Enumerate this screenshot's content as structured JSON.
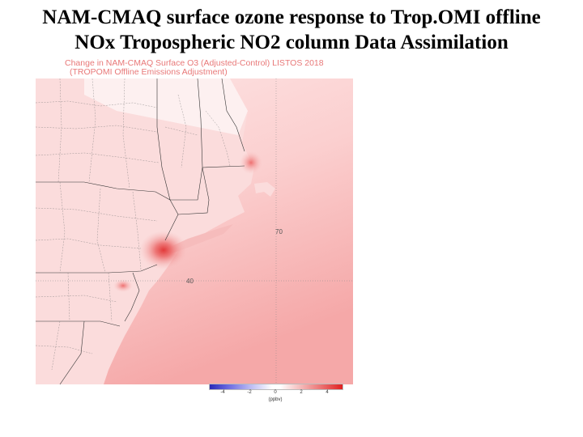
{
  "title": {
    "line1": "NAM-CMAQ surface ozone response to Trop.OMI offline",
    "line2": "NOx Tropospheric NO2 column Data Assimilation"
  },
  "map": {
    "caption_line1": "Change in NAM-CMAQ Surface O3 (Adjusted-Control) LISTOS 2018",
    "caption_line2": "(TROPOMI Offline Emissions Adjustment)",
    "lon_label": "70",
    "lat_label": "40",
    "colorbar": {
      "ticks": [
        "-4",
        "-2",
        "0",
        "2",
        "4"
      ],
      "unit": "(ppbv)",
      "colors": {
        "low": "#2a2ab8",
        "mid": "#ffffff",
        "high": "#e02020"
      }
    }
  }
}
